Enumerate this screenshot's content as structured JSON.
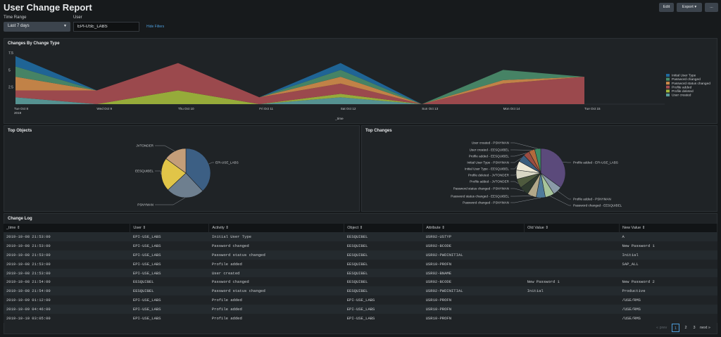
{
  "header": {
    "title": "User Change Report",
    "edit_label": "Edit",
    "export_label": "Export ▾",
    "more_label": "..."
  },
  "filters": {
    "time_range_label": "Time Range",
    "time_range_value": "Last 7 days",
    "user_label": "User",
    "user_value": "EPI-USE_LABS",
    "hide_filters": "Hide Filters"
  },
  "panels": {
    "changes_title": "Changes By Change Type",
    "objects_title": "Top Objects",
    "top_changes_title": "Top Changes",
    "log_title": "Change Log"
  },
  "chart_data": [
    {
      "type": "area",
      "title": "Changes By Change Type",
      "xlabel": "_time",
      "x": [
        "Tue Oct 8\n2019",
        "Wed Oct 9",
        "Thu Oct 10",
        "Fri Oct 11",
        "Sat Oct 12",
        "Sun Oct 13",
        "Mon Oct 14",
        "Tue Oct 15"
      ],
      "y_ticks": [
        "2.5",
        "5",
        "7.5"
      ],
      "ylim": [
        0,
        7.5
      ],
      "stacked": true,
      "legend": "right",
      "series": [
        {
          "name": "User created",
          "color": "#5a9c9a",
          "values": [
            1,
            0,
            0,
            0,
            1,
            0,
            0,
            0
          ]
        },
        {
          "name": "Profile deleted",
          "color": "#a1b73c",
          "values": [
            0,
            0,
            2,
            0,
            0.5,
            0,
            0,
            0
          ]
        },
        {
          "name": "Profile added",
          "color": "#a64d50",
          "values": [
            1,
            2,
            4,
            1,
            1.5,
            0,
            3,
            4
          ]
        },
        {
          "name": "Password status changed",
          "color": "#cf8b4a",
          "values": [
            2,
            0,
            0,
            0,
            1,
            0,
            0.5,
            0
          ]
        },
        {
          "name": "Password changed",
          "color": "#4a8c6a",
          "values": [
            1.5,
            0,
            0,
            0,
            1,
            0,
            1.5,
            0
          ]
        },
        {
          "name": "Initial User Type",
          "color": "#1f6a9e",
          "values": [
            1.5,
            0,
            0,
            0,
            1,
            0,
            0,
            0
          ]
        }
      ]
    },
    {
      "type": "pie",
      "title": "Top Objects",
      "labels": [
        "EPI-USE_LABS",
        "PSNYMAN",
        "EESQUIBEL",
        "JVTONDER"
      ],
      "values": [
        38,
        25,
        22,
        15
      ],
      "colors": [
        "#3c5f84",
        "#6e7f8f",
        "#e1c548",
        "#c49e79"
      ]
    },
    {
      "type": "pie",
      "title": "Top Changes",
      "labels": [
        "Profile added - EPI-USE_LABS",
        "Profile added - PSNYMAN",
        "Password changed - EESQUIBEL",
        "Password changed - PSNYMAN",
        "Password status changed - EESQUIBEL",
        "Password status changed - PSNYMAN",
        "Profile added - JVTONDER",
        "Profile deleted - JVTONDER",
        "Initial User Type - EESQUIBEL",
        "Initial User Type - PSNYMAN",
        "Profile added - EESQUIBEL",
        "User created - EESQUIBEL",
        "User created - PSNYMAN"
      ],
      "values": [
        35,
        6,
        6,
        6,
        6,
        6,
        6,
        6,
        6,
        5,
        4,
        4,
        4
      ],
      "colors": [
        "#5b4a7b",
        "#8a9aa8",
        "#a7c49a",
        "#4f7b9b",
        "#b2a88a",
        "#2e3a2e",
        "#4e5a3e",
        "#d8d6c4",
        "#eee9d6",
        "#3b5e7e",
        "#9a4c42",
        "#b46a3c",
        "#3f8e66"
      ]
    }
  ],
  "log": {
    "columns": [
      "_time ⇕",
      "User ⇕",
      "Activity ⇕",
      "Object ⇕",
      "Attribute ⇕",
      "Old Value ⇕",
      "New Value ⇕"
    ],
    "rows": [
      [
        "2019-10-08 21:53:00",
        "EPI-USE_LABS",
        "Initial User Type",
        "EESQUIBEL",
        "USR02-USTYP",
        "",
        "A"
      ],
      [
        "2019-10-08 21:53:00",
        "EPI-USE_LABS",
        "Password changed",
        "EESQUIBEL",
        "USR02-BCODE",
        "",
        "New Password  1"
      ],
      [
        "2019-10-08 21:53:00",
        "EPI-USE_LABS",
        "Password status changed",
        "EESQUIBEL",
        "USR02-PWDINITIAL",
        "",
        "Initial"
      ],
      [
        "2019-10-08 21:53:00",
        "EPI-USE_LABS",
        "Profile added",
        "EESQUIBEL",
        "USR10-PROFN",
        "",
        "SAP_ALL"
      ],
      [
        "2019-10-08 21:53:00",
        "EPI-USE_LABS",
        "User created",
        "EESQUIBEL",
        "USR02-BNAME",
        "",
        ""
      ],
      [
        "2019-10-08 21:54:00",
        "EESQUIBEL",
        "Password changed",
        "EESQUIBEL",
        "USR02-BCODE",
        "New Password  1",
        "New Password  2"
      ],
      [
        "2019-10-08 21:54:00",
        "EESQUIBEL",
        "Password status changed",
        "EESQUIBEL",
        "USR02-PWDINITIAL",
        "Initial",
        "Productive"
      ],
      [
        "2019-10-09 01:12:00",
        "EPI-USE_LABS",
        "Profile added",
        "EPI-USE_LABS",
        "USR10-PROFN",
        "",
        "/USE/RMS"
      ],
      [
        "2019-10-09 04:46:00",
        "EPI-USE_LABS",
        "Profile added",
        "EPI-USE_LABS",
        "USR10-PROFN",
        "",
        "/USE/RMS"
      ],
      [
        "2019-10-10 03:05:00",
        "EPI-USE_LABS",
        "Profile added",
        "EPI-USE_LABS",
        "USR10-PROFN",
        "",
        "/USE/RMS"
      ]
    ]
  },
  "pager": {
    "prev": "« prev",
    "pages": [
      "1",
      "2",
      "3"
    ],
    "current": "1",
    "next": "next »"
  }
}
